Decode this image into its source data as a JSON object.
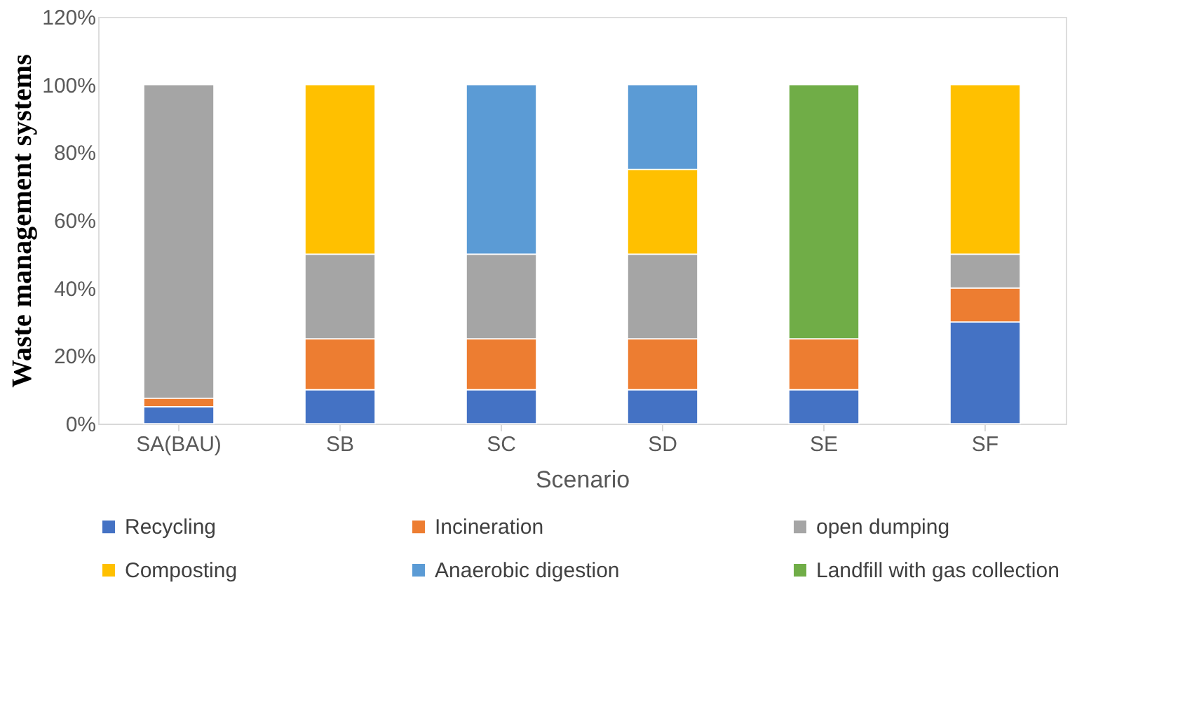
{
  "chart_data": {
    "type": "bar",
    "stacked": true,
    "xlabel": "Scenario",
    "ylabel": "Waste management systems",
    "categories": [
      "SA(BAU)",
      "SB",
      "SC",
      "SD",
      "SE",
      "SF"
    ],
    "series": [
      {
        "name": "Recycling",
        "color": "#4472c4",
        "values": [
          5,
          10,
          10,
          10,
          10,
          30
        ]
      },
      {
        "name": "Incineration",
        "color": "#ed7d31",
        "values": [
          2.5,
          15,
          15,
          15,
          15,
          10
        ]
      },
      {
        "name": "open dumping",
        "color": "#a5a5a5",
        "values": [
          92.5,
          25,
          25,
          25,
          null,
          10
        ]
      },
      {
        "name": "Composting",
        "color": "#ffc000",
        "values": [
          null,
          50,
          null,
          25,
          null,
          50
        ]
      },
      {
        "name": "Anaerobic digestion",
        "color": "#5b9bd5",
        "values": [
          null,
          null,
          50,
          25,
          null,
          null
        ]
      },
      {
        "name": "Landfill with gas collection",
        "color": "#70ad47",
        "values": [
          null,
          null,
          null,
          null,
          75,
          null
        ]
      }
    ],
    "ylim": [
      0,
      120
    ],
    "yticks": [
      {
        "value": 0,
        "label": "0%"
      },
      {
        "value": 20,
        "label": "20%"
      },
      {
        "value": 40,
        "label": "40%"
      },
      {
        "value": 60,
        "label": "60%"
      },
      {
        "value": 80,
        "label": "80%"
      },
      {
        "value": 100,
        "label": "100%"
      },
      {
        "value": 120,
        "label": "120%"
      }
    ],
    "grid": false,
    "legend": "bottom"
  }
}
